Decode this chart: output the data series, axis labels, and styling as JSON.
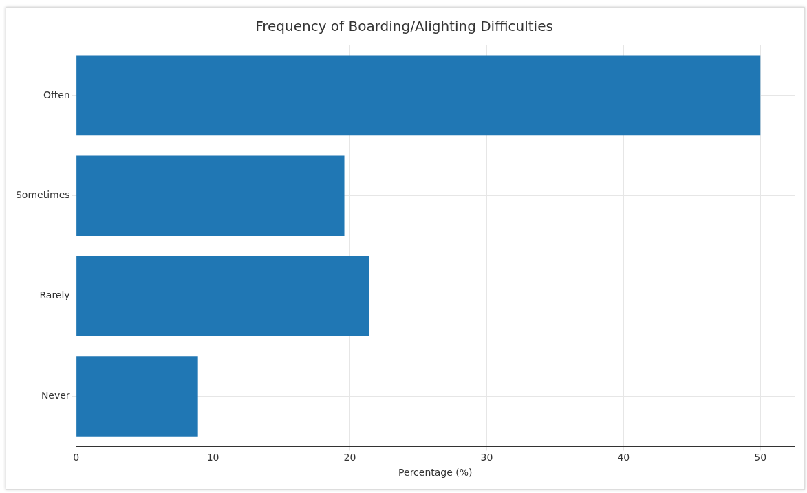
{
  "chart_data": {
    "type": "bar",
    "orientation": "horizontal",
    "title": "Frequency of Boarding/Alighting Difficulties",
    "xlabel": "Percentage (%)",
    "categories": [
      "Often",
      "Sometimes",
      "Rarely",
      "Never"
    ],
    "values": [
      50,
      19.6,
      21.4,
      8.9
    ],
    "color": "#2077b4",
    "xlim": [
      0,
      52.5
    ],
    "xticks": [
      0,
      10,
      20,
      30,
      40,
      50
    ],
    "grid": true
  }
}
